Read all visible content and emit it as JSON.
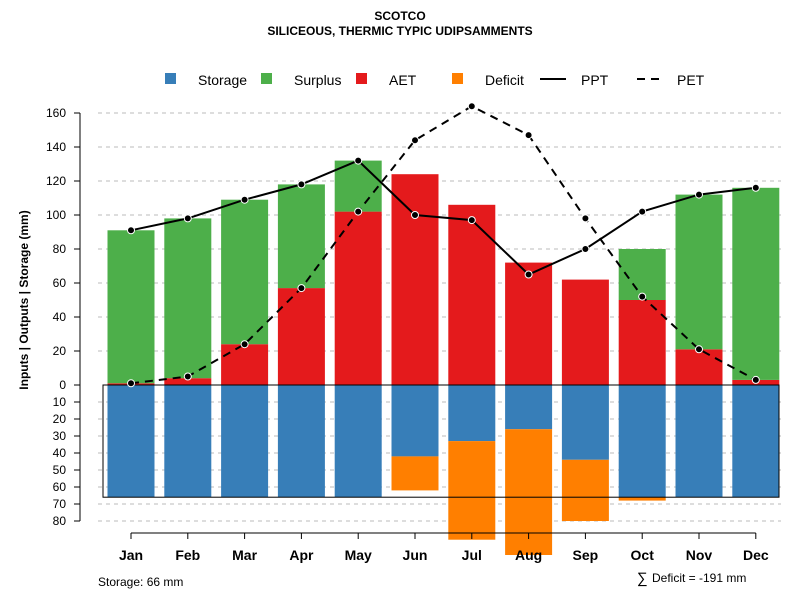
{
  "title": "SCOTCO",
  "subtitle": "SILICEOUS, THERMIC TYPIC UDIPSAMMENTS",
  "colors": {
    "storage": "#377EB8",
    "surplus": "#4DAF4A",
    "aet": "#E41A1C",
    "deficit": "#FF7F00",
    "line": "#000000",
    "grid": "#BBBBBB"
  },
  "legend": {
    "storage": "Storage",
    "surplus": "Surplus",
    "aet": "AET",
    "deficit": "Deficit",
    "ppt": "PPT",
    "pet": "PET"
  },
  "footer": {
    "storage_text": "Storage: 66 mm",
    "deficit_symbol": "∑",
    "deficit_text": "Deficit = -191 mm"
  },
  "chart_data": {
    "type": "bar",
    "title": "SCOTCO",
    "subtitle": "SILICEOUS, THERMIC TYPIC UDIPSAMMENTS",
    "ylabel": "Inputs | Outputs | Storage    (mm)",
    "ylim_top": [
      0,
      170
    ],
    "ylim_bottom": [
      0,
      80
    ],
    "yticks_top": [
      0,
      20,
      40,
      60,
      80,
      100,
      120,
      140,
      160
    ],
    "yticks_bottom": [
      10,
      20,
      30,
      40,
      50,
      60,
      70,
      80
    ],
    "categories": [
      "Jan",
      "Feb",
      "Mar",
      "Apr",
      "May",
      "Jun",
      "Jul",
      "Aug",
      "Sep",
      "Oct",
      "Nov",
      "Dec"
    ],
    "storage_capacity": 66,
    "series": [
      {
        "name": "AET",
        "values": [
          1,
          4,
          24,
          57,
          102,
          124,
          106,
          72,
          62,
          50,
          21,
          3
        ]
      },
      {
        "name": "Surplus",
        "values": [
          90,
          94,
          85,
          61,
          30,
          0,
          0,
          0,
          0,
          30,
          91,
          113
        ]
      },
      {
        "name": "Storage",
        "values": [
          66,
          66,
          66,
          66,
          66,
          42,
          33,
          26,
          44,
          66,
          66,
          66
        ]
      },
      {
        "name": "Deficit",
        "values": [
          0,
          0,
          0,
          0,
          0,
          20,
          58,
          74,
          36,
          2,
          0,
          0
        ]
      },
      {
        "name": "PPT",
        "values": [
          91,
          98,
          109,
          118,
          132,
          100,
          97,
          65,
          80,
          102,
          112,
          116
        ]
      },
      {
        "name": "PET",
        "values": [
          1,
          5,
          24,
          57,
          102,
          144,
          164,
          147,
          98,
          52,
          21,
          3
        ]
      }
    ]
  }
}
